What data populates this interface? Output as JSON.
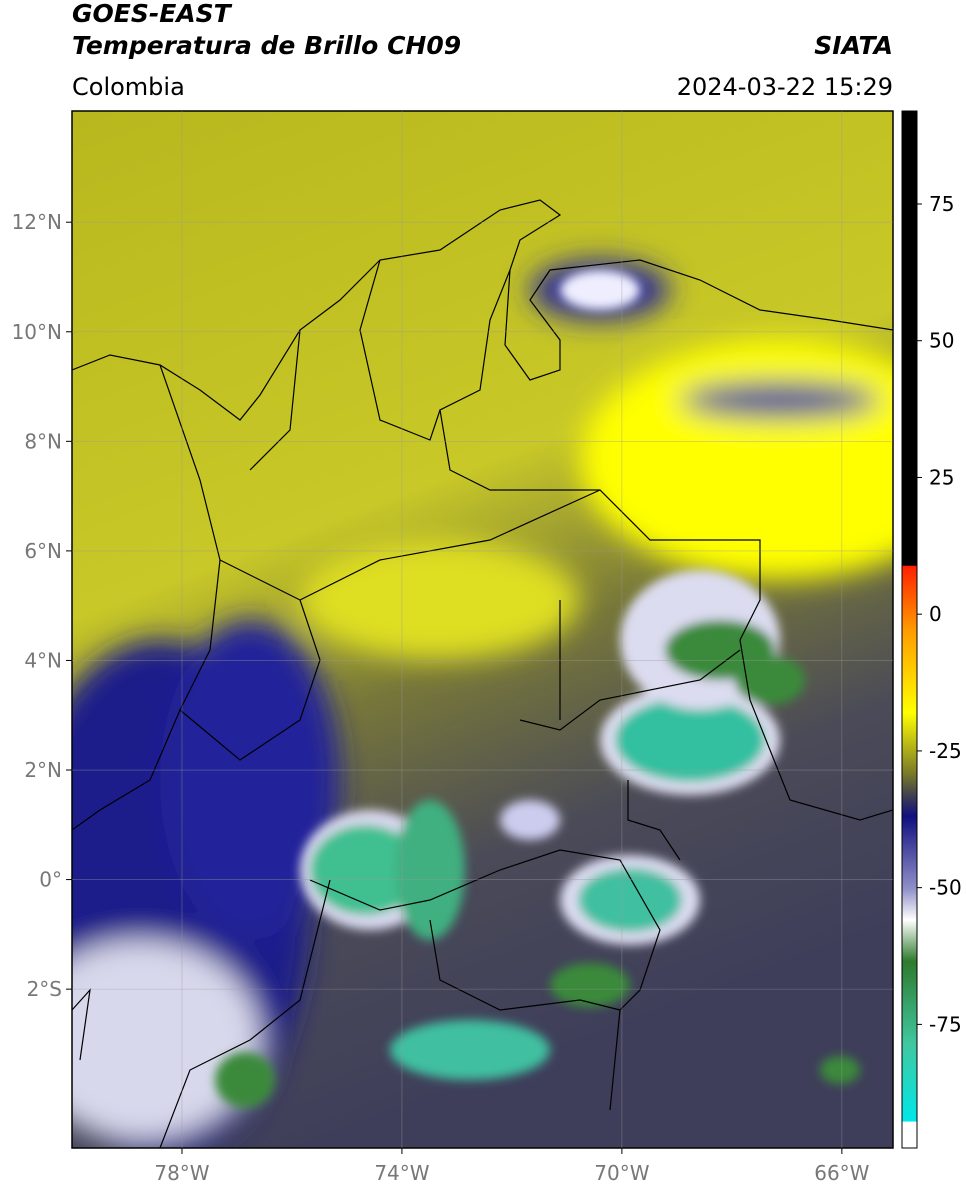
{
  "header": {
    "title": "GOES-EAST",
    "subtitle": "Temperatura de Brillo CH09",
    "source": "SIATA",
    "region": "Colombia",
    "datetime": "2024-03-22 15:29"
  },
  "map": {
    "xlim": [
      -80,
      -65.07
    ],
    "ylim": [
      -4.9,
      14.03
    ],
    "xticks": [
      {
        "value": -78,
        "label": "78°W"
      },
      {
        "value": -74,
        "label": "74°W"
      },
      {
        "value": -70,
        "label": "70°W"
      },
      {
        "value": -66,
        "label": "66°W"
      }
    ],
    "yticks": [
      {
        "value": 12,
        "label": "12°N"
      },
      {
        "value": 10,
        "label": "10°N"
      },
      {
        "value": 8,
        "label": "8°N"
      },
      {
        "value": 6,
        "label": "6°N"
      },
      {
        "value": 4,
        "label": "4°N"
      },
      {
        "value": 2,
        "label": "2°N"
      },
      {
        "value": 0,
        "label": "0°"
      },
      {
        "value": -2,
        "label": "2°S"
      }
    ]
  },
  "colorbar": {
    "lim": [
      -97.6,
      92
    ],
    "ticks": [
      75,
      50,
      25,
      0,
      -25,
      -50,
      -75
    ]
  }
}
